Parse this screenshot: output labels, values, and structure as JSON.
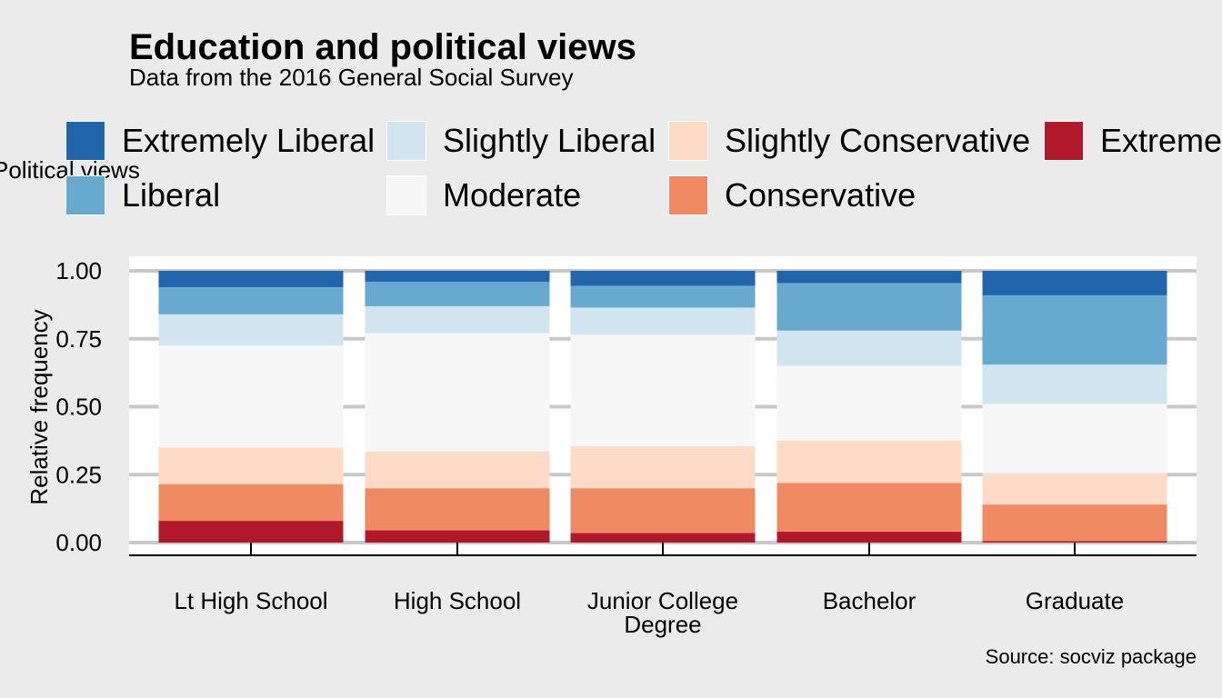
{
  "chart_data": {
    "type": "bar",
    "stacked": true,
    "title": "Education and political views",
    "subtitle": "Data from the 2016 General Social Survey",
    "legend_title": "Political views",
    "legend_position": "top",
    "ylabel": "Relative frequency",
    "xlabel": "",
    "ylim": [
      0,
      1
    ],
    "yticks": [
      "1.00",
      "0.75",
      "0.50",
      "0.25",
      "0.00"
    ],
    "ytick_values": [
      1.0,
      0.75,
      0.5,
      0.25,
      0.0
    ],
    "grid": true,
    "caption": "Source: socviz package",
    "categories": [
      "Lt High School",
      "High School",
      "Junior College\nDegree",
      "Bachelor",
      "Graduate"
    ],
    "series": [
      {
        "name": "Extremely Conservative",
        "color": "#b2182b",
        "values": [
          0.08,
          0.045,
          0.035,
          0.04,
          0.005
        ]
      },
      {
        "name": "Conservative",
        "color": "#ef8a62",
        "values": [
          0.135,
          0.155,
          0.165,
          0.18,
          0.135
        ]
      },
      {
        "name": "Slightly Conservative",
        "color": "#fddbc7",
        "values": [
          0.135,
          0.135,
          0.155,
          0.155,
          0.115
        ]
      },
      {
        "name": "Moderate",
        "color": "#f7f7f7",
        "values": [
          0.375,
          0.435,
          0.41,
          0.275,
          0.255
        ]
      },
      {
        "name": "Slightly Liberal",
        "color": "#d1e5f0",
        "values": [
          0.115,
          0.1,
          0.1,
          0.13,
          0.145
        ]
      },
      {
        "name": "Liberal",
        "color": "#67a9cf",
        "values": [
          0.1,
          0.09,
          0.08,
          0.175,
          0.255
        ]
      },
      {
        "name": "Extremely Liberal",
        "color": "#2166ac",
        "values": [
          0.06,
          0.04,
          0.055,
          0.045,
          0.09
        ]
      }
    ],
    "legend_order": [
      "Extremely Liberal",
      "Liberal",
      "Slightly Liberal",
      "Moderate",
      "Slightly Conservative",
      "Conservative",
      "Extremely Conservative"
    ]
  }
}
